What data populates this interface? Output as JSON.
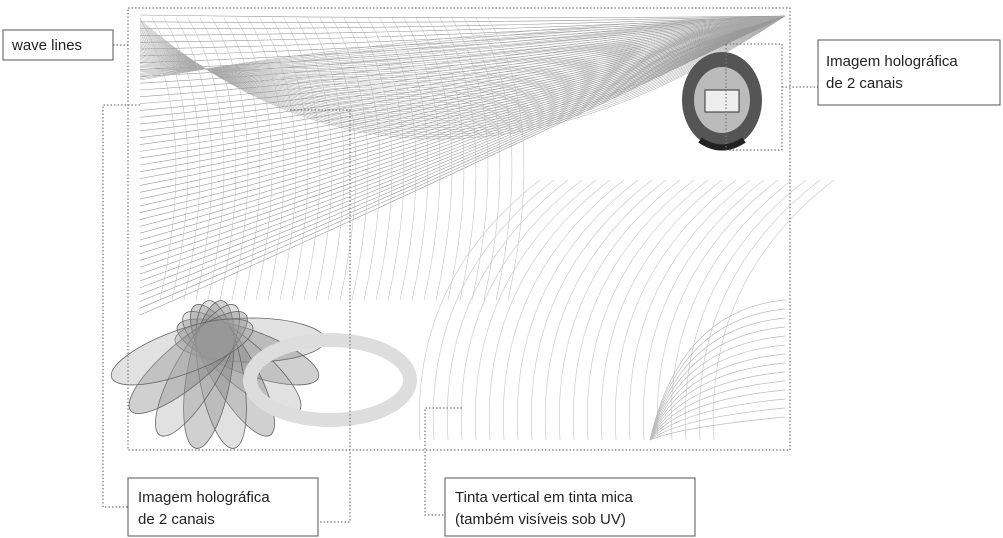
{
  "labels": [
    {
      "lines": [
        "wave lines"
      ]
    },
    {
      "lines": [
        "Imagem holográfica",
        "de 2 canais"
      ]
    },
    {
      "lines": [
        "Imagem holográfica",
        "de 2 canais"
      ]
    },
    {
      "lines": [
        "Tinta vertical em tinta mica",
        "(também visíveis sob UV)"
      ]
    }
  ]
}
